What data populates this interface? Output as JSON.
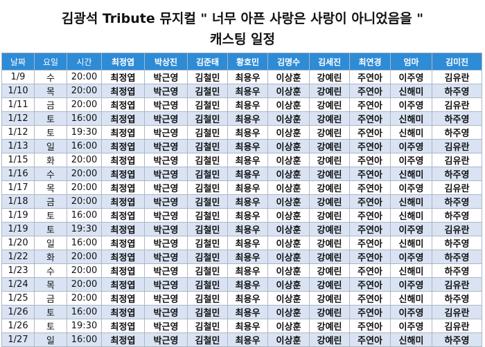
{
  "title": {
    "line1": "김광석 Tribute 뮤지컬 \" 너무 아픈 사랑은 사랑이 아니었음을 \"",
    "line2": "캐스팅 일정"
  },
  "table": {
    "headers": [
      "날짜",
      "요일",
      "시간",
      "최정엽",
      "박상진",
      "김준태",
      "황호민",
      "김명수",
      "김세진",
      "최연경",
      "엄마",
      "김미진"
    ],
    "rows": [
      [
        "1/9",
        "수",
        "20:00",
        "최정엽",
        "박근영",
        "김철민",
        "최용우",
        "이상훈",
        "강예린",
        "주연아",
        "이주영",
        "김유란"
      ],
      [
        "1/10",
        "목",
        "20:00",
        "최정엽",
        "박근영",
        "김철민",
        "최용우",
        "이상훈",
        "강예린",
        "주연아",
        "신해미",
        "하주영"
      ],
      [
        "1/11",
        "금",
        "20:00",
        "최정엽",
        "박근영",
        "김철민",
        "최용우",
        "이상훈",
        "강예린",
        "주연아",
        "이주영",
        "김유란"
      ],
      [
        "1/12",
        "토",
        "16:00",
        "최정엽",
        "박근영",
        "김철민",
        "최용우",
        "이상훈",
        "강예린",
        "주연아",
        "신해미",
        "하주영"
      ],
      [
        "1/12",
        "토",
        "19:30",
        "최정엽",
        "박근영",
        "김철민",
        "최용우",
        "이상훈",
        "강예린",
        "주연아",
        "신해미",
        "하주영"
      ],
      [
        "1/13",
        "일",
        "16:00",
        "최정엽",
        "박근영",
        "김철민",
        "최용우",
        "이상훈",
        "강예린",
        "주연아",
        "이주영",
        "김유란"
      ],
      [
        "1/15",
        "화",
        "20:00",
        "최정엽",
        "박근영",
        "김철민",
        "최용우",
        "이상훈",
        "강예린",
        "주연아",
        "이주영",
        "김유란"
      ],
      [
        "1/16",
        "수",
        "20:00",
        "최정엽",
        "박근영",
        "김철민",
        "최용우",
        "이상훈",
        "강예린",
        "주연아",
        "신해미",
        "하주영"
      ],
      [
        "1/17",
        "목",
        "20:00",
        "최정엽",
        "박근영",
        "김철민",
        "최용우",
        "이상훈",
        "강예린",
        "주연아",
        "이주영",
        "김유란"
      ],
      [
        "1/18",
        "금",
        "20:00",
        "최정엽",
        "박근영",
        "김철민",
        "최용우",
        "이상훈",
        "강예린",
        "주연아",
        "신해미",
        "하주영"
      ],
      [
        "1/19",
        "토",
        "16:00",
        "최정엽",
        "박근영",
        "김철민",
        "최용우",
        "이상훈",
        "강예린",
        "주연아",
        "신해미",
        "하주영"
      ],
      [
        "1/19",
        "토",
        "19:30",
        "최정엽",
        "박근영",
        "김철민",
        "최용우",
        "이상훈",
        "강예린",
        "주연아",
        "이주영",
        "김유란"
      ],
      [
        "1/20",
        "일",
        "16:00",
        "최정엽",
        "박근영",
        "김철민",
        "최용우",
        "이상훈",
        "강예린",
        "주연아",
        "신해미",
        "하주영"
      ],
      [
        "1/22",
        "화",
        "20:00",
        "최정엽",
        "박근영",
        "김철민",
        "최용우",
        "이상훈",
        "강예린",
        "주연아",
        "이주영",
        "하주영"
      ],
      [
        "1/23",
        "수",
        "20:00",
        "최정엽",
        "박근영",
        "김철민",
        "최용우",
        "이상훈",
        "강예린",
        "주연아",
        "신해미",
        "하주영"
      ],
      [
        "1/24",
        "목",
        "20:00",
        "최정엽",
        "박근영",
        "김철민",
        "최용우",
        "이상훈",
        "강예린",
        "주연아",
        "이주영",
        "김유란"
      ],
      [
        "1/25",
        "금",
        "20:00",
        "최정엽",
        "박근영",
        "김철민",
        "최용우",
        "이상훈",
        "강예린",
        "주연아",
        "신해미",
        "하주영"
      ],
      [
        "1/26",
        "토",
        "16:00",
        "최정엽",
        "박근영",
        "김철민",
        "최용우",
        "이상훈",
        "강예린",
        "주연아",
        "이주영",
        "김유란"
      ],
      [
        "1/26",
        "토",
        "19:30",
        "최정엽",
        "박근영",
        "김철민",
        "최용우",
        "이상훈",
        "강예린",
        "주연아",
        "이주영",
        "김유란"
      ],
      [
        "1/27",
        "일",
        "16:00",
        "최정엽",
        "박근영",
        "김철민",
        "최용우",
        "이상훈",
        "강예린",
        "주연아",
        "신해미",
        "하주영"
      ]
    ]
  },
  "colors": {
    "header_bg": "#2e8bd6",
    "alt_row_bg": "#d9e3f3",
    "grid": "#aeb6c3"
  }
}
